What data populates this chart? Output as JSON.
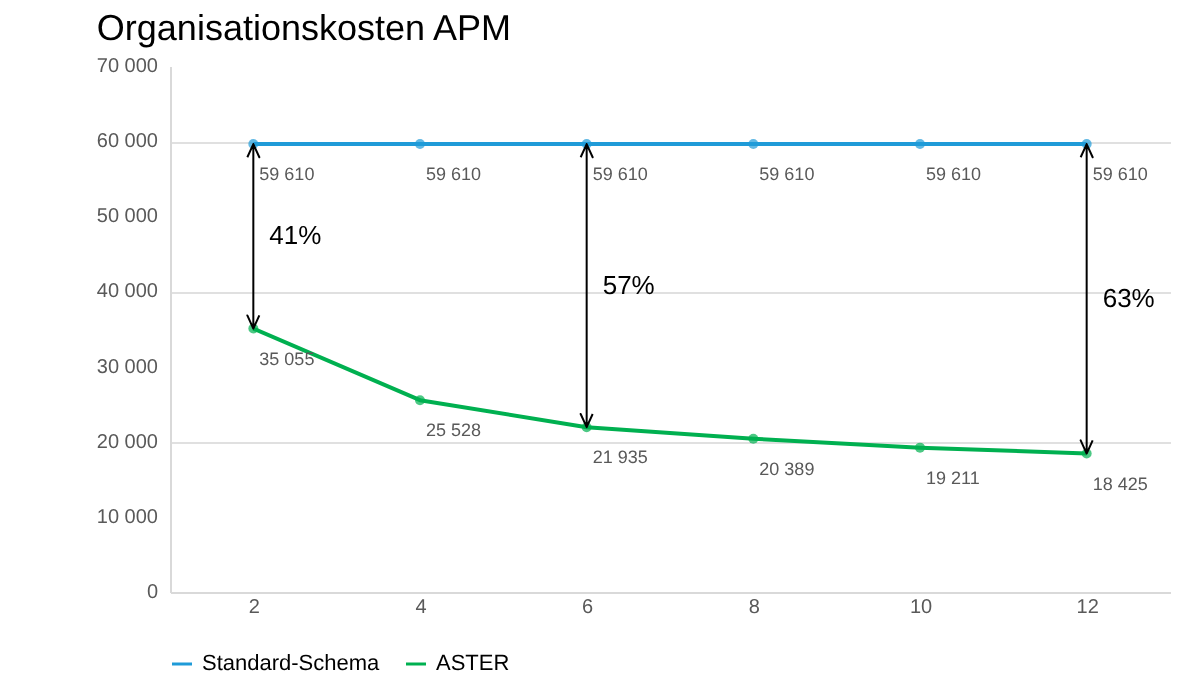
{
  "chart_data": {
    "type": "line",
    "title": "Organisationskosten APM",
    "x": [
      2,
      4,
      6,
      8,
      10,
      12
    ],
    "series": [
      {
        "name": "Standard-Schema",
        "color": "#1f9bd8",
        "values": [
          59610,
          59610,
          59610,
          59610,
          59610,
          59610
        ],
        "value_labels": [
          "59 610",
          "59 610",
          "59 610",
          "59 610",
          "59 610",
          "59 610"
        ]
      },
      {
        "name": "ASTER",
        "color": "#00b050",
        "values": [
          35055,
          25528,
          21935,
          20389,
          19211,
          18425
        ],
        "value_labels": [
          "35 055",
          "25 528",
          "21 935",
          "20 389",
          "19 211",
          "18 425"
        ]
      }
    ],
    "xlim": [
      1,
      13
    ],
    "xticks": [
      2,
      4,
      6,
      8,
      10,
      12
    ],
    "ylim": [
      0,
      70000
    ],
    "yticks": [
      0,
      {
        "value": 10000,
        "label": "10 000"
      },
      {
        "value": 20000,
        "label": "20 000"
      },
      {
        "value": 30000,
        "label": "30 000"
      },
      {
        "value": 40000,
        "label": "40 000"
      },
      {
        "value": 50000,
        "label": "50 000"
      },
      {
        "value": 60000,
        "label": "60 000"
      },
      {
        "value": 70000,
        "label": "70 000"
      }
    ],
    "ref_lines": [
      {
        "axis": "x",
        "value": 2
      },
      {
        "axis": "x",
        "value": 6
      },
      {
        "axis": "x",
        "value": 12
      }
    ],
    "annotations": [
      "41%",
      "57%",
      "63%"
    ],
    "grid": "y",
    "legend": "bottom",
    "marker": "circle"
  }
}
